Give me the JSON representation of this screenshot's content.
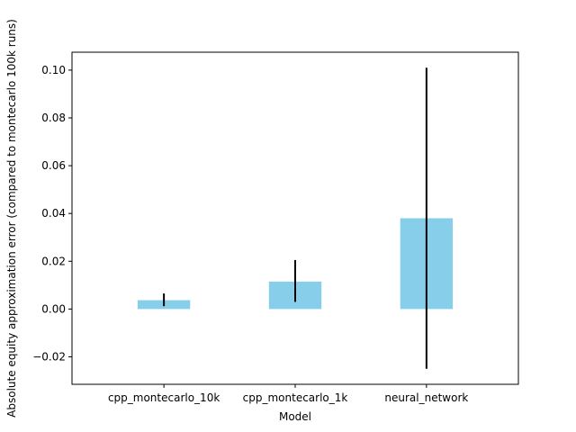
{
  "chart_data": {
    "type": "bar",
    "title": "",
    "xlabel": "Model",
    "ylabel": "Absolute equity approximation error (compared to montecarlo 100k runs)",
    "categories": [
      "cpp_montecarlo_10k",
      "cpp_montecarlo_1k",
      "neural_network"
    ],
    "values": [
      0.0037,
      0.0115,
      0.038
    ],
    "error_low": [
      0.0012,
      0.003,
      -0.025
    ],
    "error_high": [
      0.0065,
      0.0205,
      0.101
    ],
    "ylim": [
      -0.0315,
      0.1075
    ],
    "yticks": [
      -0.02,
      0.0,
      0.02,
      0.04,
      0.06,
      0.08,
      0.1
    ],
    "ytick_labels": [
      "−0.02",
      "0.00",
      "0.02",
      "0.04",
      "0.06",
      "0.08",
      "0.10"
    ],
    "grid": false,
    "legend": "none",
    "bar_color": "#87ceeb",
    "error_color": "#000000"
  }
}
